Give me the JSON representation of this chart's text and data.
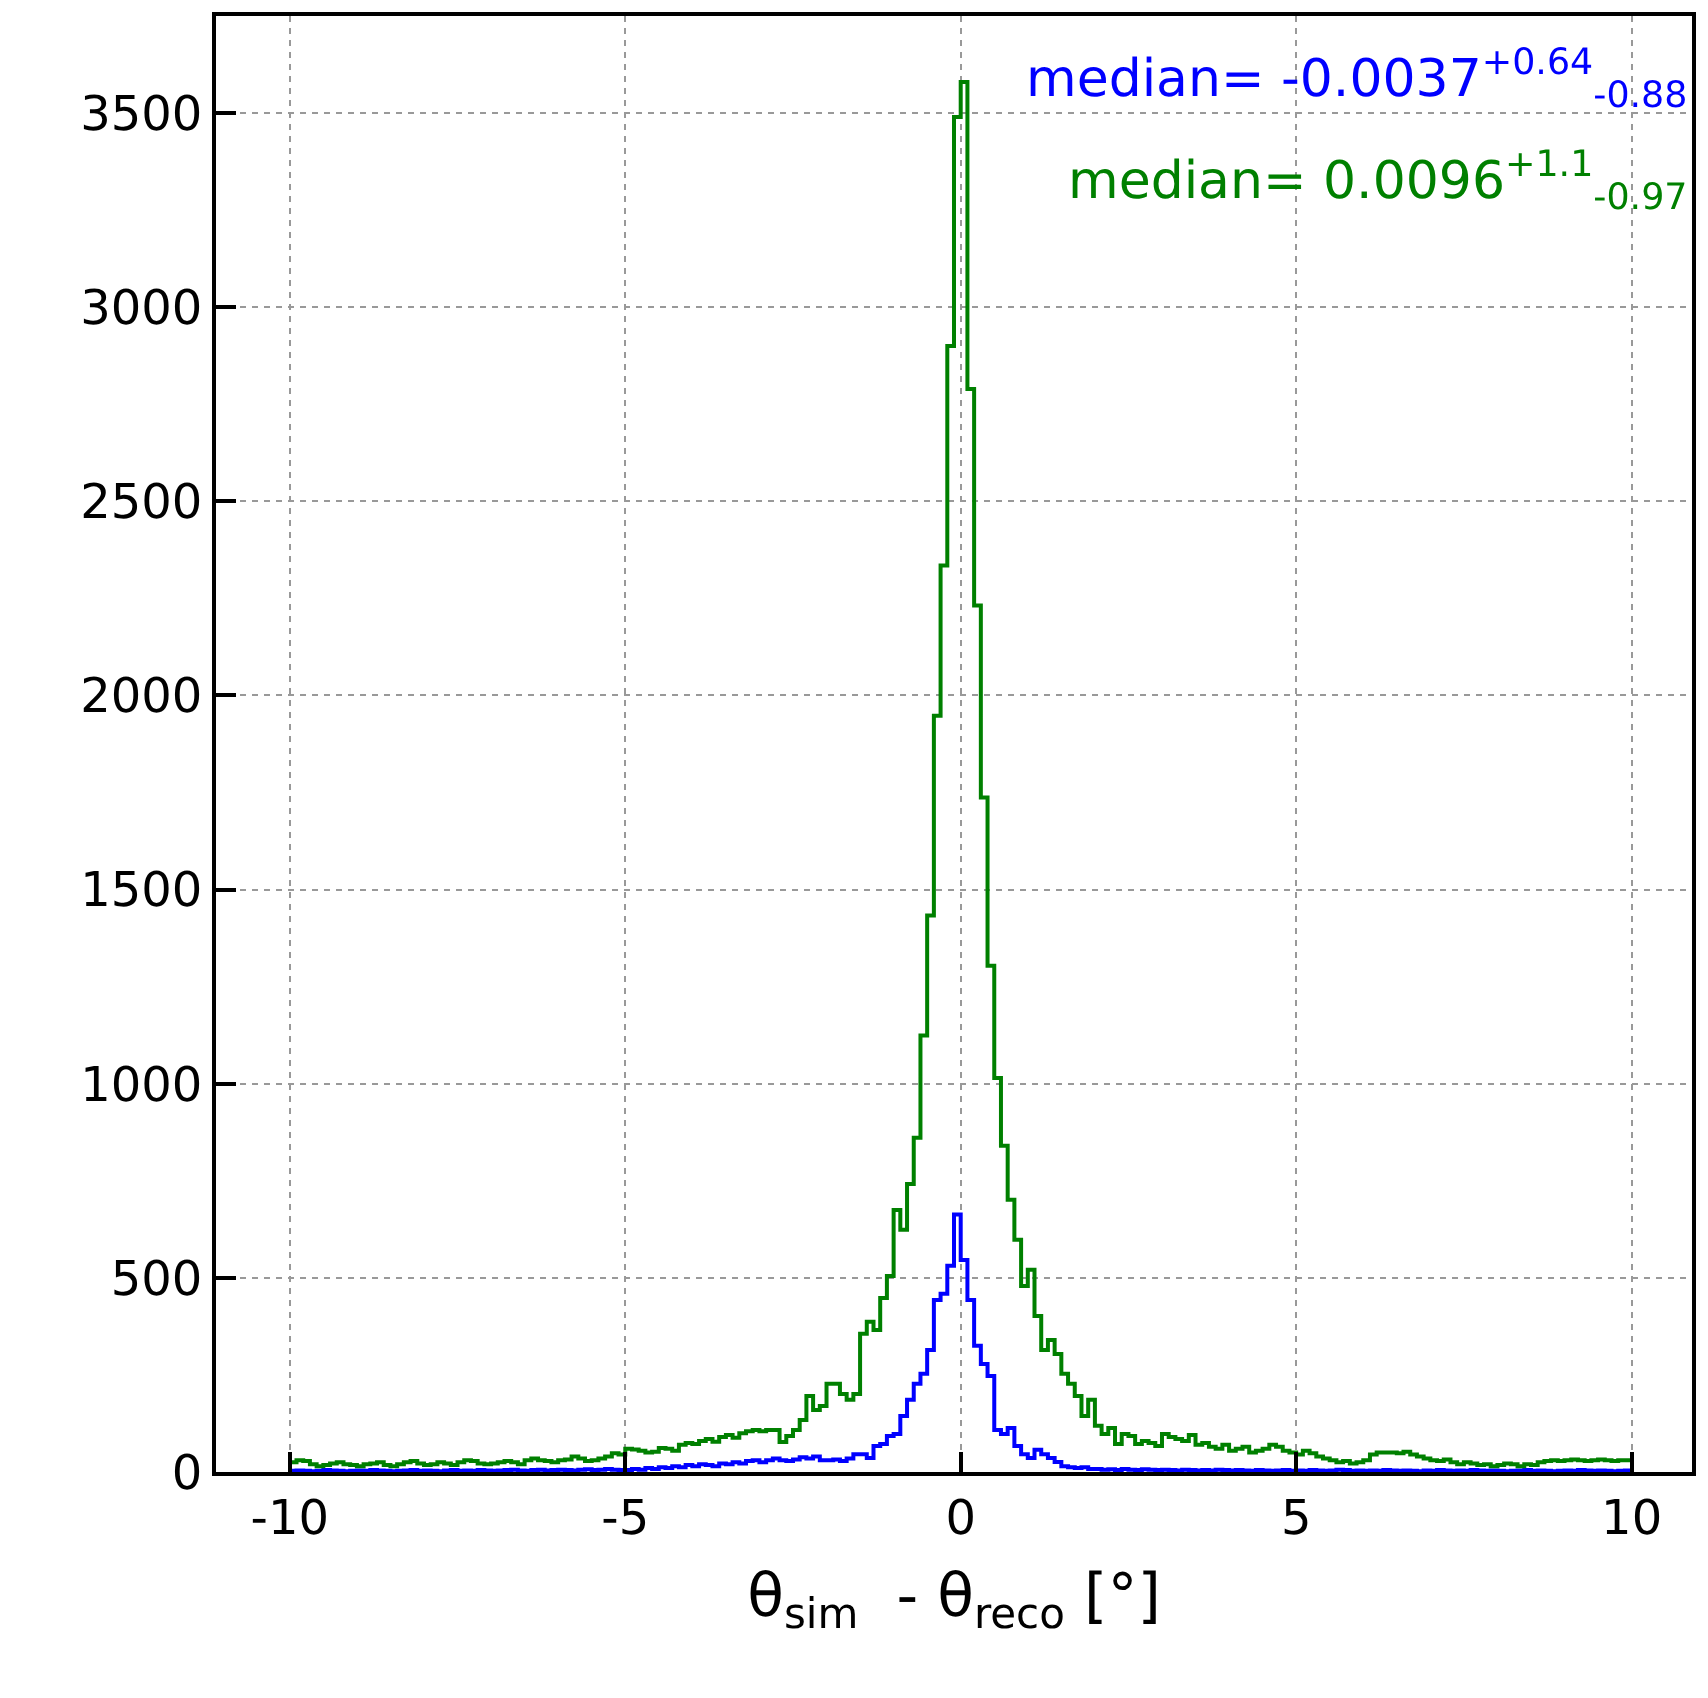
{
  "chart_data": {
    "type": "histogram",
    "xlabel": "θ$_{sim}$  - θ$_{reco}$ [°]",
    "bins": [
      -10,
      -9.9,
      -9.8,
      -9.7,
      -9.6,
      -9.5,
      -9.4,
      -9.3,
      -9.2,
      -9.1,
      -9,
      -8.9,
      -8.8,
      -8.7,
      -8.6,
      -8.5,
      -8.4,
      -8.3,
      -8.2,
      -8.1,
      -8,
      -7.9,
      -7.8,
      -7.7,
      -7.6,
      -7.5,
      -7.4,
      -7.3,
      -7.2,
      -7.1,
      -7,
      -6.9,
      -6.8,
      -6.7,
      -6.6,
      -6.5,
      -6.4,
      -6.3,
      -6.2,
      -6.1,
      -6,
      -5.9,
      -5.8,
      -5.7,
      -5.6,
      -5.5,
      -5.4,
      -5.3,
      -5.2,
      -5.1,
      -5,
      -4.9,
      -4.8,
      -4.7,
      -4.6,
      -4.5,
      -4.4,
      -4.3,
      -4.2,
      -4.1,
      -4,
      -3.9,
      -3.8,
      -3.7,
      -3.6,
      -3.5,
      -3.4,
      -3.3,
      -3.2,
      -3.1,
      -3,
      -2.9,
      -2.8,
      -2.7,
      -2.6,
      -2.5,
      -2.4,
      -2.3,
      -2.2,
      -2.1,
      -2,
      -1.9,
      -1.8,
      -1.7,
      -1.6,
      -1.5,
      -1.4,
      -1.3,
      -1.2,
      -1.1,
      -1,
      -0.9,
      -0.8,
      -0.7,
      -0.6,
      -0.5,
      -0.4,
      -0.3,
      -0.2,
      -0.1,
      0,
      0.1,
      0.2,
      0.3,
      0.4,
      0.5,
      0.6,
      0.7,
      0.8,
      0.9,
      1,
      1.1,
      1.2,
      1.3,
      1.4,
      1.5,
      1.6,
      1.7,
      1.8,
      1.9,
      2,
      2.1,
      2.2,
      2.3,
      2.4,
      2.5,
      2.6,
      2.7,
      2.8,
      2.9,
      3,
      3.1,
      3.2,
      3.3,
      3.4,
      3.5,
      3.6,
      3.7,
      3.8,
      3.9,
      4,
      4.1,
      4.2,
      4.3,
      4.4,
      4.5,
      4.6,
      4.7,
      4.8,
      4.9,
      5,
      5.1,
      5.2,
      5.3,
      5.4,
      5.5,
      5.6,
      5.7,
      5.8,
      5.9,
      6,
      6.1,
      6.2,
      6.3,
      6.4,
      6.5,
      6.6,
      6.7,
      6.8,
      6.9,
      7,
      7.1,
      7.2,
      7.3,
      7.4,
      7.5,
      7.6,
      7.7,
      7.8,
      7.9,
      8,
      8.1,
      8.2,
      8.3,
      8.4,
      8.5,
      8.6,
      8.7,
      8.8,
      8.9,
      9,
      9.1,
      9.2,
      9.3,
      9.4,
      9.5,
      9.6,
      9.7,
      9.8,
      9.9,
      10
    ],
    "series": [
      {
        "color": "#0000ff",
        "values": [
          3,
          4,
          3,
          2,
          3,
          5,
          4,
          3,
          2,
          3,
          4,
          3,
          5,
          4,
          3,
          2,
          3,
          4,
          5,
          3,
          4,
          3,
          2,
          4,
          5,
          3,
          4,
          3,
          5,
          4,
          3,
          4,
          5,
          6,
          4,
          3,
          5,
          6,
          4,
          5,
          6,
          5,
          4,
          6,
          7,
          5,
          6,
          8,
          6,
          5,
          5,
          8,
          6,
          10,
          8,
          12,
          10,
          15,
          12,
          18,
          15,
          20,
          18,
          15,
          22,
          20,
          25,
          22,
          28,
          30,
          25,
          30,
          35,
          30,
          28,
          32,
          38,
          35,
          40,
          30,
          30,
          32,
          28,
          35,
          46,
          46,
          36,
          67,
          72,
          93,
          98,
          144,
          186,
          227,
          253,
          314,
          443,
          459,
          531,
          663,
          546,
          443,
          325,
          278,
          247,
          108,
          98,
          113,
          67,
          46,
          36,
          57,
          46,
          36,
          26,
          15,
          12,
          10,
          12,
          8,
          8,
          6,
          7,
          5,
          8,
          6,
          5,
          7,
          6,
          5,
          6,
          5,
          4,
          6,
          5,
          4,
          5,
          4,
          6,
          5,
          4,
          5,
          4,
          3,
          5,
          4,
          3,
          4,
          5,
          3,
          4,
          3,
          5,
          4,
          3,
          4,
          6,
          5,
          3,
          4,
          3,
          4,
          3,
          5,
          4,
          3,
          4,
          3,
          2,
          4,
          3,
          5,
          4,
          3,
          4,
          3,
          5,
          4,
          3,
          4,
          3,
          2,
          3,
          4,
          5,
          3,
          4,
          3,
          2,
          3,
          4,
          3,
          5,
          4,
          3,
          4,
          3,
          2,
          3,
          4
        ]
      },
      {
        "color": "#008000",
        "values": [
          25,
          30,
          28,
          20,
          15,
          18,
          22,
          25,
          20,
          18,
          15,
          20,
          22,
          25,
          18,
          15,
          20,
          25,
          28,
          22,
          18,
          20,
          25,
          22,
          18,
          25,
          30,
          28,
          22,
          20,
          22,
          25,
          28,
          25,
          20,
          30,
          35,
          30,
          28,
          25,
          30,
          32,
          40,
          35,
          28,
          30,
          35,
          40,
          48,
          45,
          60,
          58,
          55,
          50,
          52,
          62,
          60,
          55,
          70,
          75,
          72,
          80,
          85,
          78,
          90,
          95,
          88,
          100,
          105,
          108,
          105,
          108,
          108,
          77,
          93,
          108,
          134,
          196,
          160,
          170,
          227,
          227,
          201,
          186,
          201,
          356,
          387,
          366,
          448,
          505,
          675,
          624,
          742,
          861,
          1124,
          1433,
          1948,
          2335,
          2900,
          3490,
          3580,
          2789,
          2232,
          1737,
          1304,
          1015,
          840,
          701,
          598,
          479,
          521,
          402,
          314,
          340,
          304,
          253,
          227,
          196,
          144,
          186,
          119,
          98,
          113,
          72,
          98,
          93,
          72,
          80,
          75,
          67,
          98,
          90,
          85,
          80,
          95,
          70,
          75,
          65,
          60,
          70,
          55,
          60,
          65,
          50,
          55,
          60,
          70,
          65,
          55,
          50,
          45,
          55,
          48,
          40,
          35,
          30,
          25,
          28,
          22,
          25,
          30,
          45,
          50,
          50,
          50,
          48,
          52,
          45,
          40,
          35,
          30,
          28,
          32,
          25,
          20,
          25,
          22,
          18,
          20,
          15,
          18,
          22,
          20,
          15,
          20,
          18,
          25,
          28,
          30,
          28,
          30,
          32,
          30,
          28,
          30,
          32,
          30,
          28,
          30,
          30
        ]
      }
    ],
    "annotations": [
      "median= -0.0037$^{+0.64}$$_{-0.88}$",
      "median= 0.0096$^{+1.1}$$_{-0.97}$"
    ],
    "xlim": [
      -11.1,
      10.9
    ],
    "ylim": [
      0,
      3750
    ],
    "xticks": [
      -10,
      -5,
      0,
      5,
      10
    ],
    "yticks": [
      0,
      500,
      1000,
      1500,
      2000,
      2500,
      3000,
      3500
    ],
    "grid": true
  }
}
